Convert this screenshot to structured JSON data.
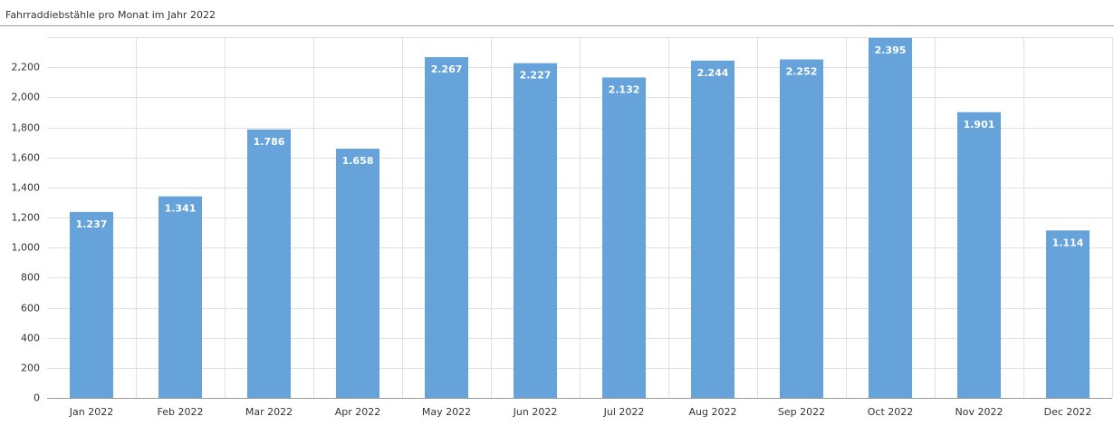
{
  "chart_data": {
    "type": "bar",
    "title": "Fahrraddiebstähle pro Monat im Jahr 2022",
    "categories": [
      "Jan 2022",
      "Feb 2022",
      "Mar 2022",
      "Apr 2022",
      "May 2022",
      "Jun 2022",
      "Jul 2022",
      "Aug 2022",
      "Sep 2022",
      "Oct 2022",
      "Nov 2022",
      "Dec 2022"
    ],
    "values": [
      1237,
      1341,
      1786,
      1658,
      2267,
      2227,
      2132,
      2244,
      2252,
      2395,
      1901,
      1114
    ],
    "value_labels": [
      "1.237",
      "1.341",
      "1.786",
      "1.658",
      "2.267",
      "2.227",
      "2.132",
      "2.244",
      "2.252",
      "2.395",
      "1.901",
      "1.114"
    ],
    "color": "#65a3da",
    "ylim": [
      0,
      2400
    ],
    "yticks": [
      0,
      200,
      400,
      600,
      800,
      {
        "value": 1000,
        "label": "1,000"
      },
      {
        "value": 1200,
        "label": "1,200"
      },
      {
        "value": 1400,
        "label": "1,400"
      },
      {
        "value": 1600,
        "label": "1,600"
      },
      {
        "value": 1800,
        "label": "1,800"
      },
      {
        "value": 2000,
        "label": "2,000"
      },
      {
        "value": 2200,
        "label": "2,200"
      }
    ],
    "grid": true
  }
}
